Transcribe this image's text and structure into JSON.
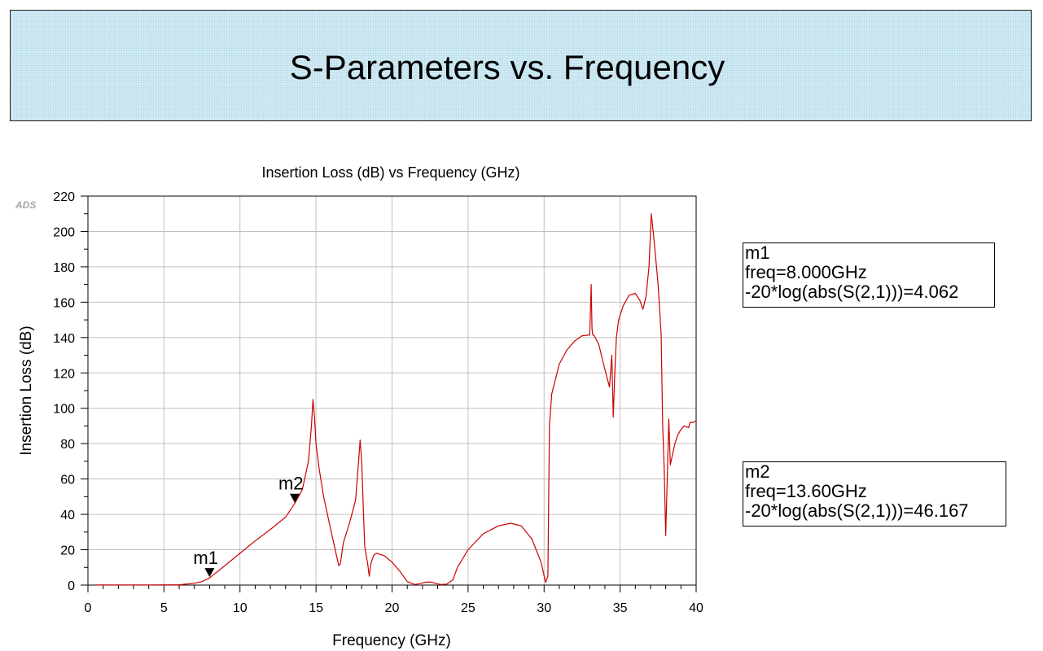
{
  "banner": {
    "title": "S-Parameters vs. Frequency"
  },
  "watermark": "ADS",
  "markers": [
    {
      "name": "m1",
      "freq_label": "freq=8.000GHz",
      "value_label": "-20*log(abs(S(2,1)))=4.062",
      "x": 8.0,
      "y": 4.062
    },
    {
      "name": "m2",
      "freq_label": "freq=13.60GHz",
      "value_label": "-20*log(abs(S(2,1)))=46.167",
      "x": 13.6,
      "y": 46.167
    }
  ],
  "chart_data": {
    "type": "line",
    "title": "Insertion Loss (dB) vs Frequency (GHz)",
    "xlabel": "Frequency (GHz)",
    "ylabel": "Insertion Loss (dB)",
    "xlim": [
      0,
      40
    ],
    "ylim": [
      0,
      220
    ],
    "xticks": [
      0,
      5,
      10,
      15,
      20,
      25,
      30,
      35,
      40
    ],
    "yticks": [
      0,
      20,
      40,
      60,
      80,
      100,
      120,
      140,
      160,
      180,
      200,
      220
    ],
    "grid": true,
    "color": "#cc0000",
    "series": [
      {
        "x": [
          0.5,
          2,
          4,
          6,
          7,
          7.5,
          8,
          9,
          10,
          11,
          12,
          13,
          13.6,
          14.1,
          14.5,
          14.7,
          14.8,
          14.9,
          15.0,
          15.2,
          15.5,
          16,
          16.5,
          16.6,
          16.8,
          17.2,
          17.6,
          17.8,
          17.9,
          18.0,
          18.2,
          18.4,
          18.5,
          18.6,
          18.8,
          19.0,
          19.5,
          20.0,
          20.5,
          21.0,
          21.5,
          21.8,
          22.2,
          22.5,
          22.8,
          23.2,
          23.6,
          24.0,
          24.3,
          25.0,
          26.0,
          27.0,
          27.8,
          28.5,
          29.2,
          29.8,
          30.1,
          30.25,
          30.35,
          30.5,
          31.0,
          31.5,
          32.0,
          32.5,
          33.0,
          33.1,
          33.15,
          33.2,
          33.3,
          33.6,
          34.0,
          34.3,
          34.45,
          34.55,
          34.65,
          34.75,
          34.9,
          35.2,
          35.6,
          36.0,
          36.3,
          36.5,
          36.7,
          36.9,
          37.05,
          37.2,
          37.5,
          37.7,
          37.8,
          37.9,
          38.0,
          38.1,
          38.2,
          38.3,
          38.4,
          38.6,
          38.8,
          39.0,
          39.2,
          39.5,
          39.6,
          39.8,
          40.0
        ],
        "values": [
          0.1,
          0.1,
          0.1,
          0.2,
          1.0,
          2.0,
          4.062,
          11,
          18,
          25,
          31.5,
          38.5,
          46.167,
          54,
          70,
          90,
          105,
          95,
          80,
          66,
          50,
          30,
          11,
          12,
          24,
          35,
          48,
          70,
          82,
          70,
          22,
          12,
          5,
          12,
          17,
          18,
          16.5,
          13,
          8,
          2,
          0.3,
          0.8,
          1.6,
          1.8,
          1.2,
          0.3,
          0.5,
          3,
          10,
          20,
          29,
          33.5,
          35,
          33.5,
          26,
          13,
          1.5,
          5,
          90,
          108,
          125,
          133,
          138,
          141,
          141.5,
          170,
          145,
          141.5,
          141,
          136,
          122,
          112,
          130,
          95,
          120,
          140,
          150,
          158,
          164,
          165,
          161,
          156,
          163,
          180,
          210,
          198,
          170,
          142,
          90,
          65,
          28,
          60,
          94,
          68,
          72,
          80,
          85,
          88,
          90,
          89,
          92,
          92,
          93
        ]
      }
    ]
  }
}
